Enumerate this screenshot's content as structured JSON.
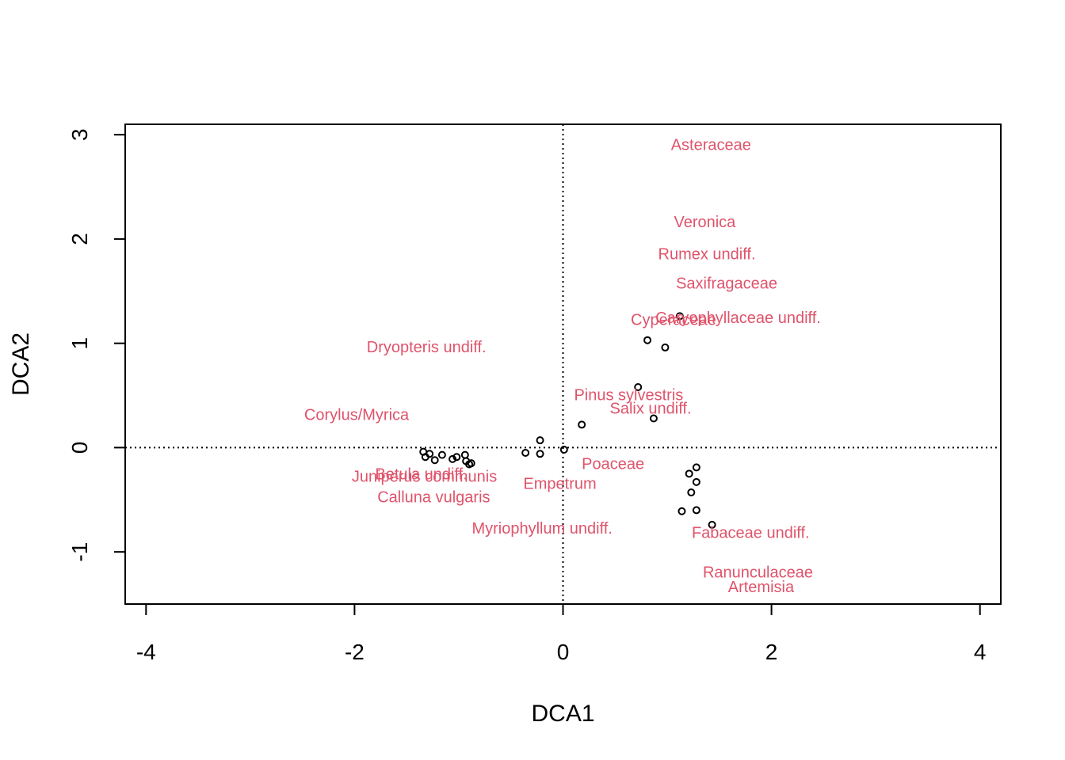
{
  "chart_data": {
    "type": "scatter",
    "xlabel": "DCA1",
    "ylabel": "DCA2",
    "xlim": [
      -4.2,
      4.2
    ],
    "ylim": [
      -1.5,
      3.1
    ],
    "x_ticks": [
      -4,
      -2,
      0,
      2,
      4
    ],
    "y_ticks": [
      -1,
      0,
      1,
      2,
      3
    ],
    "x_tick_labels": [
      "-4",
      "-2",
      "0",
      "2",
      "4"
    ],
    "y_tick_labels": [
      "-1",
      "0",
      "1",
      "2",
      "3"
    ],
    "reference_lines": {
      "x": 0,
      "y": 0,
      "style": "dotted"
    },
    "grid": false,
    "colors": {
      "points": "#000000",
      "labels": "#DF536B",
      "axes": "#000000"
    },
    "sites": [
      {
        "x": -1.34,
        "y": -0.04
      },
      {
        "x": -1.32,
        "y": -0.09
      },
      {
        "x": -1.28,
        "y": -0.06
      },
      {
        "x": -1.23,
        "y": -0.12
      },
      {
        "x": -1.16,
        "y": -0.07
      },
      {
        "x": -1.06,
        "y": -0.11
      },
      {
        "x": -1.02,
        "y": -0.09
      },
      {
        "x": -0.94,
        "y": -0.07
      },
      {
        "x": -0.93,
        "y": -0.13
      },
      {
        "x": -0.9,
        "y": -0.16
      },
      {
        "x": -0.88,
        "y": -0.15
      },
      {
        "x": -0.36,
        "y": -0.05
      },
      {
        "x": -0.22,
        "y": -0.06
      },
      {
        "x": -0.22,
        "y": 0.07
      },
      {
        "x": 0.01,
        "y": -0.02
      },
      {
        "x": 0.18,
        "y": 0.22
      },
      {
        "x": 0.72,
        "y": 0.58
      },
      {
        "x": 0.81,
        "y": 1.03
      },
      {
        "x": 0.98,
        "y": 0.96
      },
      {
        "x": 1.12,
        "y": 1.26
      },
      {
        "x": 0.87,
        "y": 0.28
      },
      {
        "x": 1.21,
        "y": -0.25
      },
      {
        "x": 1.28,
        "y": -0.19
      },
      {
        "x": 1.28,
        "y": -0.33
      },
      {
        "x": 1.23,
        "y": -0.43
      },
      {
        "x": 1.14,
        "y": -0.61
      },
      {
        "x": 1.28,
        "y": -0.6
      },
      {
        "x": 1.43,
        "y": -0.74
      }
    ],
    "species": [
      {
        "name": "Asteraceae",
        "x": 1.42,
        "y": 2.9
      },
      {
        "name": "Veronica",
        "x": 1.36,
        "y": 2.16
      },
      {
        "name": "Rumex undiff.",
        "x": 1.38,
        "y": 1.85
      },
      {
        "name": "Saxifragaceae",
        "x": 1.57,
        "y": 1.57
      },
      {
        "name": "Caryophyllaceae undiff.",
        "x": 1.68,
        "y": 1.24
      },
      {
        "name": "Cyperaceae",
        "x": 1.06,
        "y": 1.22
      },
      {
        "name": "Dryopteris undiff.",
        "x": -1.31,
        "y": 0.96
      },
      {
        "name": "Pinus sylvestris",
        "x": 0.63,
        "y": 0.5
      },
      {
        "name": "Salix undiff.",
        "x": 0.84,
        "y": 0.37
      },
      {
        "name": "Corylus/Myrica",
        "x": -1.98,
        "y": 0.31
      },
      {
        "name": "Poaceae",
        "x": 0.48,
        "y": -0.16
      },
      {
        "name": "Betula undiff.",
        "x": -1.36,
        "y": -0.26
      },
      {
        "name": "Juniperus communis",
        "x": -1.33,
        "y": -0.28
      },
      {
        "name": "Empetrum",
        "x": -0.03,
        "y": -0.35
      },
      {
        "name": "Calluna vulgaris",
        "x": -1.24,
        "y": -0.48
      },
      {
        "name": "Myriophyllum undiff.",
        "x": -0.2,
        "y": -0.78
      },
      {
        "name": "Fabaceae undiff.",
        "x": 1.8,
        "y": -0.82
      },
      {
        "name": "Ranunculaceae",
        "x": 1.87,
        "y": -1.2
      },
      {
        "name": "Artemisia",
        "x": 1.9,
        "y": -1.34
      }
    ]
  }
}
